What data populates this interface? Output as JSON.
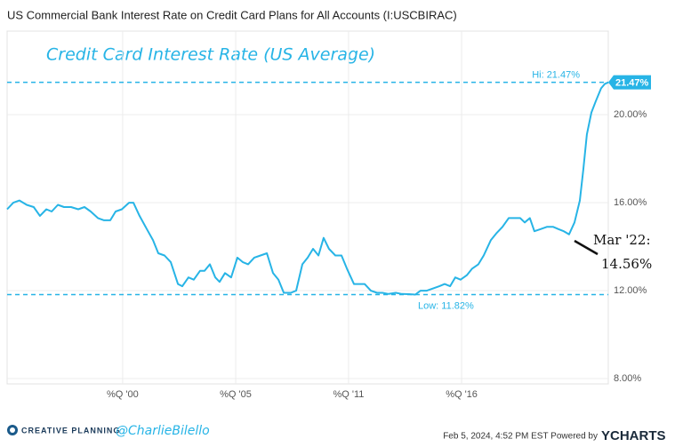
{
  "chart_data": {
    "type": "line",
    "title": "US Commercial Bank Interest Rate on Credit Card Plans for All Accounts (I:USCBIRAC)",
    "subtitle": "Credit Card Interest Rate (US Average)",
    "x": [
      1994.5,
      1994.8,
      1995.1,
      1995.45,
      1995.79,
      1996.09,
      1996.4,
      1996.66,
      1996.96,
      1997.26,
      1997.6,
      1997.95,
      1998.25,
      1998.55,
      1998.9,
      1999.2,
      1999.5,
      1999.76,
      2000.06,
      2000.41,
      2000.62,
      2000.92,
      2001.27,
      2001.57,
      2001.83,
      2002.13,
      2002.43,
      2002.78,
      2002.99,
      2003.29,
      2003.55,
      2003.85,
      2004.07,
      2004.33,
      2004.59,
      2004.8,
      2005.06,
      2005.36,
      2005.66,
      2005.92,
      2006.18,
      2006.48,
      2006.78,
      2007.09,
      2007.39,
      2007.65,
      2007.91,
      2008.25,
      2008.51,
      2008.81,
      2009.07,
      2009.33,
      2009.59,
      2009.84,
      2010.1,
      2010.41,
      2010.71,
      2010.97,
      2011.31,
      2011.61,
      2011.83,
      2012.13,
      2012.43,
      2012.69,
      2012.99,
      2013.34,
      2013.64,
      2013.98,
      2014.28,
      2014.54,
      2014.84,
      2015.15,
      2015.45,
      2015.71,
      2015.97,
      2016.22,
      2016.48,
      2016.78,
      2017.04,
      2017.34,
      2017.6,
      2017.95,
      2018.21,
      2018.51,
      2018.81,
      2019.07,
      2019.37,
      2019.59,
      2019.84,
      2020.06,
      2020.36,
      2020.66,
      2020.97,
      2021.22,
      2021.48,
      2021.74,
      2022.0,
      2022.26,
      2022.43,
      2022.6,
      2022.82,
      2023.03,
      2023.29,
      2023.47,
      2023.64
    ],
    "series": [
      {
        "name": "USCBIRAC",
        "color": "#27b4e6",
        "values": [
          15.7,
          16.0,
          16.1,
          15.9,
          15.8,
          15.4,
          15.7,
          15.6,
          15.9,
          15.8,
          15.8,
          15.7,
          15.8,
          15.6,
          15.3,
          15.2,
          15.2,
          15.6,
          15.7,
          16.0,
          16.0,
          15.4,
          14.8,
          14.3,
          13.7,
          13.6,
          13.3,
          12.3,
          12.2,
          12.6,
          12.5,
          12.9,
          12.9,
          13.2,
          12.6,
          12.4,
          12.8,
          12.6,
          13.5,
          13.3,
          13.2,
          13.5,
          13.6,
          13.7,
          12.8,
          12.5,
          11.9,
          11.9,
          12.0,
          13.2,
          13.5,
          13.9,
          13.6,
          14.4,
          13.9,
          13.6,
          13.6,
          13.0,
          12.3,
          12.3,
          12.3,
          12.0,
          11.9,
          11.9,
          11.85,
          11.9,
          11.85,
          11.84,
          11.82,
          12.0,
          12.0,
          12.1,
          12.2,
          12.3,
          12.2,
          12.6,
          12.5,
          12.7,
          13.0,
          13.2,
          13.6,
          14.3,
          14.6,
          14.9,
          15.3,
          15.3,
          15.3,
          15.1,
          15.3,
          14.7,
          14.8,
          14.9,
          14.9,
          14.8,
          14.7,
          14.56,
          15.1,
          16.1,
          17.5,
          19.1,
          20.1,
          20.6,
          21.2,
          21.4,
          21.47
        ]
      }
    ],
    "xlim": [
      1994.5,
      2023.64
    ],
    "xticks": [
      {
        "value": 2000.1,
        "label": "%Q '00"
      },
      {
        "value": 2005.58,
        "label": "%Q '05"
      },
      {
        "value": 2011.05,
        "label": "%Q '11"
      },
      {
        "value": 2016.53,
        "label": "%Q '16"
      }
    ],
    "ylim": [
      7.76,
      23.8
    ],
    "yticks": [
      {
        "value": 8,
        "label": "8.00%"
      },
      {
        "value": 12,
        "label": "12.00%"
      },
      {
        "value": 16,
        "label": "16.00%"
      },
      {
        "value": 20,
        "label": "20.00%"
      }
    ],
    "grid": true,
    "hi": {
      "value": 21.47,
      "label": "Hi: 21.47%"
    },
    "low": {
      "value": 11.82,
      "label": "Low: 11.82%"
    },
    "last_label": "21.47%",
    "annotation": {
      "lines": [
        "Mar '22:",
        "14.56%"
      ]
    },
    "footer": {
      "brand": "CREATIVE PLANNING",
      "handle": "@CharlieBilello",
      "timestamp": "Feb 5, 2024, 4:52 PM EST Powered by",
      "source": "YCHARTS"
    }
  }
}
